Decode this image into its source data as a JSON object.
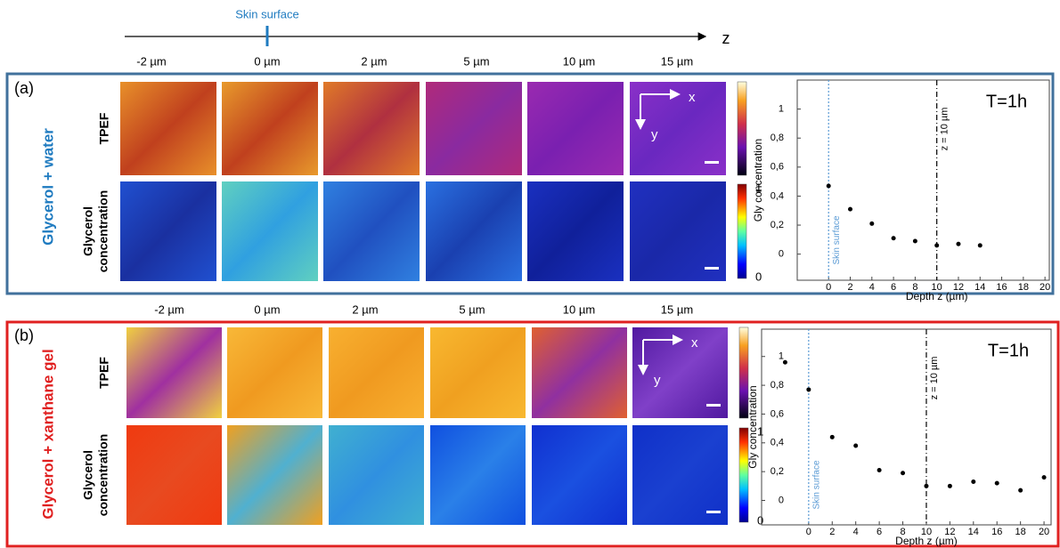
{
  "header": {
    "axis_label": "Skin surface",
    "axis_name": "z"
  },
  "panels": [
    {
      "label": "(a)",
      "sample": "Glycerol + water",
      "depths": [
        "-2 µm",
        "0 µm",
        "2 µm",
        "5 µm",
        "10 µm",
        "15 µm"
      ],
      "row_labels": {
        "tpef": "TPEF",
        "concentration": [
          "Glycerol",
          "concentration"
        ]
      },
      "colorbar_labels": [
        "1",
        "0"
      ],
      "orientation": [
        "x",
        "y"
      ]
    },
    {
      "label": "(b)",
      "sample": "Glycerol + xanthane gel",
      "depths": [
        "-2 µm",
        "0 µm",
        "2 µm",
        "5 µm",
        "10 µm",
        "15 µm"
      ],
      "row_labels": {
        "tpef": "TPEF",
        "concentration": [
          "Glycerol",
          "concentration"
        ]
      },
      "colorbar_labels": [
        "1",
        "0"
      ],
      "orientation": [
        "x",
        "y"
      ]
    }
  ],
  "chart_data": [
    {
      "type": "scatter",
      "annotation": "T=1h",
      "xlabel": "Depth z (µm)",
      "ylabel": "Gly concentration",
      "x": [
        0,
        2,
        4,
        6,
        8,
        10,
        12,
        14
      ],
      "series": [
        {
          "color": "#000000",
          "values": [
            0.47,
            0.31,
            0.21,
            0.11,
            0.09,
            0.06,
            0.07,
            0.06
          ]
        }
      ],
      "xlim": [
        -2.9,
        20.4
      ],
      "ylim": [
        -0.18,
        1.2
      ],
      "xticks": [
        0,
        2,
        4,
        6,
        8,
        10,
        12,
        14,
        16,
        18,
        20
      ],
      "yticks": [
        0,
        {
          "value": 0.2,
          "label": "0,2"
        },
        {
          "value": 0.4,
          "label": "0,4"
        },
        {
          "value": 0.6,
          "label": "0,6"
        },
        {
          "value": 0.8,
          "label": "0,8"
        },
        1
      ],
      "vlines": [
        {
          "x": 0,
          "label": "Skin surface",
          "color": "#5b9bd5"
        },
        {
          "x": 10,
          "label": "z = 10 µm",
          "color": "#000000"
        }
      ]
    },
    {
      "type": "scatter",
      "annotation": "T=1h",
      "xlabel": "Depth z (µm)",
      "ylabel": "Gly concentration",
      "x": [
        -2,
        0,
        2,
        4,
        6,
        8,
        10,
        12,
        14,
        16,
        18,
        20
      ],
      "series": [
        {
          "color": "#000000",
          "values": [
            0.96,
            0.77,
            0.44,
            0.38,
            0.21,
            0.19,
            0.1,
            0.1,
            0.13,
            0.12,
            0.07,
            0.16
          ]
        }
      ],
      "xlim": [
        -4,
        20.6
      ],
      "ylim": [
        -0.17,
        1.19
      ],
      "xticks": [
        0,
        2,
        4,
        6,
        8,
        10,
        12,
        14,
        16,
        18,
        20
      ],
      "yticks": [
        0,
        {
          "value": 0.2,
          "label": "0,2"
        },
        {
          "value": 0.4,
          "label": "0,4"
        },
        {
          "value": 0.6,
          "label": "0,6"
        },
        {
          "value": 0.8,
          "label": "0,8"
        },
        1
      ],
      "vlines": [
        {
          "x": 0,
          "label": "Skin surface",
          "color": "#5b9bd5"
        },
        {
          "x": 10,
          "label": "z = 10 µm",
          "color": "#000000"
        }
      ]
    }
  ]
}
